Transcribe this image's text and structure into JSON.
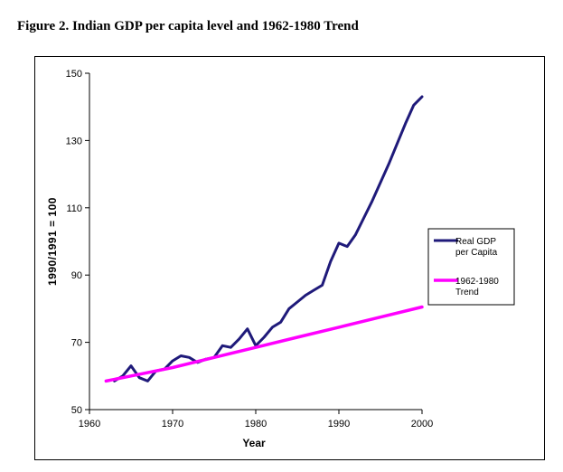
{
  "figure": {
    "caption": "Figure 2.  Indian GDP per capita level and 1962-1980 Trend"
  },
  "chart_data": {
    "type": "line",
    "title": "",
    "xlabel": "Year",
    "ylabel": "1990/1991 = 100",
    "xlim": [
      1960,
      2000
    ],
    "ylim": [
      50,
      150
    ],
    "x_ticks": [
      "1960",
      "1970",
      "1980",
      "1990",
      "2000"
    ],
    "y_ticks": [
      "50",
      "70",
      "90",
      "110",
      "130",
      "150"
    ],
    "grid": false,
    "legend_position": "right",
    "series": [
      {
        "name_lines": [
          "Real GDP",
          "per Capita"
        ],
        "color": "#1f1a7a",
        "x": [
          1963,
          1964,
          1965,
          1966,
          1967,
          1968,
          1969,
          1970,
          1971,
          1972,
          1973,
          1974,
          1975,
          1976,
          1977,
          1978,
          1979,
          1980,
          1981,
          1982,
          1983,
          1984,
          1985,
          1986,
          1987,
          1988,
          1989,
          1990,
          1991,
          1992,
          1993,
          1994,
          1995,
          1996,
          1997,
          1998,
          1999,
          2000
        ],
        "y": [
          58.5,
          60,
          63,
          59.5,
          58.5,
          61.5,
          62,
          64.5,
          66,
          65.5,
          64,
          65,
          65.5,
          69,
          68.5,
          71,
          74,
          69,
          71.5,
          74.5,
          76,
          80,
          82,
          84,
          85.5,
          87,
          94,
          99.5,
          98.5,
          102,
          107,
          112,
          117.5,
          123,
          129,
          135,
          140.5,
          143
        ]
      },
      {
        "name_lines": [
          "1962-1980",
          "Trend"
        ],
        "color": "#ff00ff",
        "x": [
          1962,
          1965,
          1970,
          1975,
          1980,
          1985,
          1990,
          1995,
          2000
        ],
        "y": [
          58.5,
          60,
          62.5,
          65.5,
          68.5,
          71.5,
          74.5,
          77.5,
          80.5
        ]
      }
    ]
  }
}
